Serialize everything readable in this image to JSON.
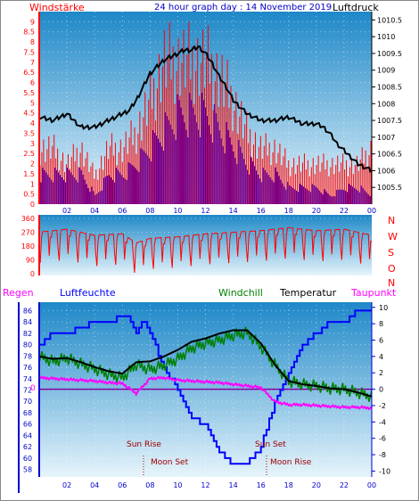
{
  "header": {
    "left_label": "Windstärke",
    "title": "24 hour graph day : 14 November 2019",
    "right_label": "Luftdruck"
  },
  "direction_labels": [
    "N",
    "W",
    "S",
    "O",
    "N"
  ],
  "legend": {
    "regen": "Regen",
    "luftfeuchte": "Luftfeuchte",
    "windchill": "Windchill",
    "temperatur": "Temperatur",
    "taupunkt": "Taupunkt"
  },
  "annotations": {
    "sun_rise": "Sun Rise",
    "sun_set": "Sun Set",
    "moon_set": "Moon Set",
    "moon_rise": "Moon Rise"
  },
  "colors": {
    "wind": "#ff0000",
    "gust_blue": "#0000ff",
    "pressure": "#000000",
    "humidity": "#0000ff",
    "windchill": "#008000",
    "temperature": "#000000",
    "dewpoint": "#ff00ff",
    "axis_blue": "#0000cc",
    "title_blue": "#0000cc"
  },
  "chart_data": [
    {
      "type": "line",
      "panel": "wind-pressure",
      "x_ticks": [
        "02",
        "04",
        "06",
        "08",
        "10",
        "12",
        "14",
        "16",
        "18",
        "20",
        "22",
        "00"
      ],
      "left_axis": {
        "label": "Windstärke",
        "ticks": [
          "0",
          "0.5",
          "1",
          "1.5",
          "2",
          "2.5",
          "3",
          "3.5",
          "4",
          "4.5",
          "5",
          "5.5",
          "6",
          "6.5",
          "7",
          "7.5",
          "8",
          "8.5",
          "9"
        ],
        "range": [
          0,
          9.5
        ]
      },
      "right_axis": {
        "label": "Luftdruck",
        "ticks": [
          "1005.5",
          "1006",
          "1006.5",
          "1007",
          "1007.5",
          "1008",
          "1008.5",
          "1009",
          "1009.5",
          "1010",
          "1010.5"
        ],
        "range": [
          1005.0,
          1010.75
        ]
      },
      "series": [
        {
          "name": "Luftdruck",
          "axis": "right",
          "x": [
            0,
            1,
            2,
            3,
            4,
            5,
            6,
            6.5,
            7,
            7.5,
            8,
            8.5,
            9,
            9.5,
            10,
            10.5,
            11,
            11.5,
            12,
            12.5,
            13,
            13.5,
            14,
            14.5,
            15,
            15.5,
            16,
            17,
            18,
            19,
            20,
            20.5,
            21,
            21.5,
            22,
            22.5,
            23,
            23.5,
            24
          ],
          "y": [
            1007.6,
            1007.5,
            1007.7,
            1007.3,
            1007.3,
            1007.5,
            1007.7,
            1007.8,
            1008.1,
            1008.5,
            1008.9,
            1009.1,
            1009.3,
            1009.4,
            1009.5,
            1009.6,
            1009.6,
            1009.7,
            1009.5,
            1009.2,
            1008.8,
            1008.5,
            1008.1,
            1007.9,
            1007.7,
            1007.6,
            1007.5,
            1007.5,
            1007.6,
            1007.4,
            1007.4,
            1007.3,
            1007.1,
            1006.8,
            1006.6,
            1006.4,
            1006.2,
            1006.1,
            1006.0
          ]
        },
        {
          "name": "Wind",
          "axis": "left",
          "x": [
            0,
            1,
            2,
            3,
            4,
            5,
            6,
            7,
            8,
            9,
            10,
            11,
            12,
            13,
            14,
            15,
            16,
            17,
            18,
            19,
            20,
            21,
            22,
            23,
            24
          ],
          "y": [
            1.8,
            1.8,
            1.8,
            1.8,
            0.5,
            1.8,
            1.8,
            2.5,
            3.5,
            4.5,
            5.5,
            5.5,
            5.5,
            4.5,
            3.5,
            2.5,
            1.8,
            1.8,
            1.0,
            1.0,
            1.0,
            0.5,
            1.0,
            1.0,
            0.5
          ]
        },
        {
          "name": "Gust",
          "axis": "left",
          "x": [
            0,
            1,
            2,
            3,
            4,
            5,
            6,
            7,
            8,
            9,
            10,
            11,
            12,
            13,
            14,
            15,
            16,
            17,
            18,
            19,
            20,
            21,
            22,
            23,
            24
          ],
          "y": [
            3.5,
            3.5,
            2.5,
            3.5,
            1.8,
            3.5,
            3.5,
            4.5,
            6.5,
            9.0,
            9.0,
            9.0,
            9.0,
            8.0,
            6.5,
            4.5,
            3.5,
            3.5,
            2.5,
            2.5,
            2.5,
            2.5,
            2.5,
            2.5,
            3.5
          ]
        }
      ]
    },
    {
      "type": "scatter",
      "panel": "wind-direction",
      "y_ticks": [
        "360",
        "270",
        "180",
        "90",
        "0"
      ],
      "range": [
        0,
        360
      ],
      "series": [
        {
          "name": "Windrichtung",
          "x": [
            0,
            2,
            4,
            6,
            7,
            8,
            10,
            12,
            14,
            16,
            18,
            20,
            22,
            24
          ],
          "y": [
            270,
            290,
            250,
            260,
            200,
            230,
            240,
            260,
            270,
            280,
            300,
            280,
            290,
            250
          ]
        }
      ]
    },
    {
      "type": "line",
      "panel": "temperature-humidity",
      "x_ticks": [
        "02",
        "04",
        "06",
        "08",
        "10",
        "12",
        "14",
        "16",
        "18",
        "20",
        "22",
        "00"
      ],
      "left_axis": {
        "label": "Luftfeuchte",
        "ticks": [
          "58",
          "60",
          "62",
          "64",
          "66",
          "68",
          "70",
          "72",
          "74",
          "76",
          "78",
          "80",
          "82",
          "84",
          "86"
        ],
        "range": [
          57,
          87
        ]
      },
      "right_axis": {
        "label": "Temperatur",
        "ticks": [
          "-10",
          "-8",
          "-6",
          "-4",
          "-2",
          "0",
          "2",
          "4",
          "6",
          "8",
          "10"
        ],
        "range": [
          -10.5,
          10.3
        ]
      },
      "zero_line_label": "0",
      "series": [
        {
          "name": "Luftfeuchte",
          "axis": "left",
          "x": [
            0,
            0.5,
            1,
            2,
            3,
            4,
            5,
            6,
            6.5,
            7,
            7.5,
            8,
            9,
            10,
            11,
            12,
            13,
            14,
            15,
            16,
            16.5,
            17,
            17.5,
            18,
            18.5,
            19,
            20,
            21,
            22,
            23,
            24
          ],
          "y": [
            80,
            81,
            82,
            82,
            83,
            84,
            84,
            85,
            85,
            82,
            85,
            82,
            76,
            72,
            67,
            66,
            61,
            59,
            59,
            62,
            66,
            70,
            72,
            75,
            78,
            80,
            82,
            84,
            84,
            86,
            86
          ]
        },
        {
          "name": "Temperatur",
          "axis": "right",
          "x": [
            0,
            1,
            2,
            3,
            4,
            5,
            6,
            7,
            8,
            9,
            10,
            11,
            12,
            13,
            14,
            15,
            16,
            17,
            18,
            19,
            20,
            21,
            22,
            23,
            24
          ],
          "y": [
            4.0,
            3.7,
            3.8,
            3.3,
            2.7,
            2.2,
            1.9,
            3.3,
            3.4,
            4.0,
            4.8,
            5.8,
            6.2,
            6.8,
            7.2,
            7.2,
            5.6,
            3.0,
            1.0,
            0.6,
            0.4,
            0.1,
            0.0,
            -0.4,
            -0.9
          ]
        },
        {
          "name": "Windchill",
          "axis": "right",
          "x": [
            0,
            1,
            2,
            3,
            4,
            5,
            6,
            7,
            8,
            9,
            10,
            11,
            12,
            13,
            14,
            15,
            16,
            17,
            18,
            19,
            20,
            21,
            22,
            23,
            24
          ],
          "y": [
            4.0,
            3.4,
            3.8,
            3.1,
            2.5,
            1.8,
            1.4,
            3.0,
            2.4,
            2.9,
            3.7,
            5.0,
            5.6,
            6.0,
            6.6,
            6.9,
            5.2,
            3.0,
            1.0,
            0.6,
            0.4,
            0.1,
            0.0,
            -0.4,
            -0.9
          ]
        },
        {
          "name": "Taupunkt",
          "axis": "right",
          "x": [
            0,
            1,
            2,
            3,
            4,
            5,
            6,
            7,
            8,
            9,
            10,
            11,
            12,
            13,
            14,
            15,
            16,
            17,
            18,
            19,
            20,
            21,
            22,
            23,
            24
          ],
          "y": [
            1.4,
            1.3,
            1.2,
            1.1,
            1.0,
            0.8,
            0.7,
            -0.5,
            1.3,
            1.4,
            1.1,
            1.0,
            0.9,
            0.8,
            0.6,
            0.4,
            0.2,
            -1.5,
            -1.9,
            -1.9,
            -2.0,
            -2.1,
            -2.2,
            -2.2,
            -2.3
          ]
        }
      ]
    }
  ]
}
